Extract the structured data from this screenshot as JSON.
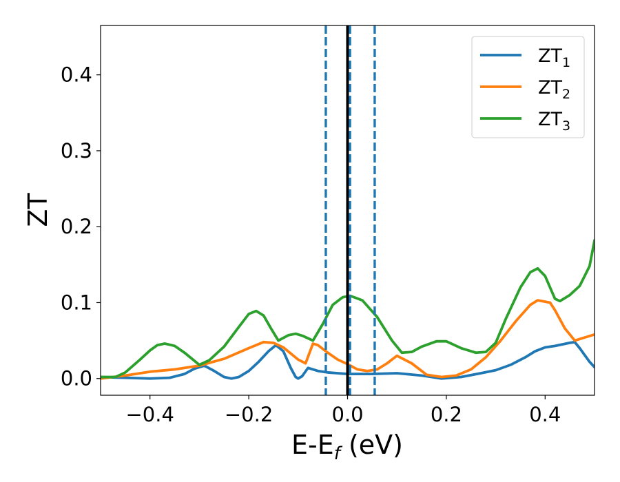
{
  "chart_data": {
    "type": "line",
    "xlabel": {
      "main": "E-E",
      "sub": "f",
      "unit": " (eV)"
    },
    "ylabel": "ZT",
    "xlim": [
      -0.5,
      0.5
    ],
    "ylim": [
      -0.022,
      0.465
    ],
    "xticks": [
      -0.4,
      -0.2,
      0.0,
      0.2,
      0.4
    ],
    "xtick_labels": [
      "−0.4",
      "−0.2",
      "0.0",
      "0.2",
      "0.4"
    ],
    "yticks": [
      0.0,
      0.1,
      0.2,
      0.3,
      0.4
    ],
    "ytick_labels": [
      "0.0",
      "0.1",
      "0.2",
      "0.3",
      "0.4"
    ],
    "grid": false,
    "legend_position": "top-right",
    "vlines": [
      {
        "x": 0.0,
        "style": "solid",
        "color": "#000000"
      },
      {
        "x": -0.044,
        "style": "dashed",
        "color": "#1f77b4"
      },
      {
        "x": 0.005,
        "style": "dashed",
        "color": "#1f77b4"
      },
      {
        "x": 0.055,
        "style": "dashed",
        "color": "#1f77b4"
      }
    ],
    "series": [
      {
        "name": "ZT",
        "name_sub": "1",
        "color": "#1f77b4",
        "points": [
          [
            -0.5,
            0.002
          ],
          [
            -0.45,
            0.001
          ],
          [
            -0.4,
            0.0
          ],
          [
            -0.36,
            0.001
          ],
          [
            -0.33,
            0.006
          ],
          [
            -0.31,
            0.013
          ],
          [
            -0.29,
            0.017
          ],
          [
            -0.27,
            0.01
          ],
          [
            -0.25,
            0.002
          ],
          [
            -0.235,
            0.0
          ],
          [
            -0.22,
            0.002
          ],
          [
            -0.2,
            0.01
          ],
          [
            -0.18,
            0.022
          ],
          [
            -0.16,
            0.036
          ],
          [
            -0.145,
            0.044
          ],
          [
            -0.13,
            0.036
          ],
          [
            -0.115,
            0.014
          ],
          [
            -0.105,
            0.002
          ],
          [
            -0.1,
            0.0
          ],
          [
            -0.092,
            0.003
          ],
          [
            -0.08,
            0.014
          ],
          [
            -0.06,
            0.01
          ],
          [
            -0.04,
            0.008
          ],
          [
            -0.02,
            0.007
          ],
          [
            0.0,
            0.006
          ],
          [
            0.05,
            0.006
          ],
          [
            0.1,
            0.007
          ],
          [
            0.15,
            0.004
          ],
          [
            0.19,
            0.0
          ],
          [
            0.23,
            0.002
          ],
          [
            0.27,
            0.007
          ],
          [
            0.3,
            0.011
          ],
          [
            0.33,
            0.018
          ],
          [
            0.36,
            0.028
          ],
          [
            0.38,
            0.036
          ],
          [
            0.4,
            0.041
          ],
          [
            0.42,
            0.043
          ],
          [
            0.45,
            0.047
          ],
          [
            0.46,
            0.048
          ],
          [
            0.47,
            0.04
          ],
          [
            0.49,
            0.022
          ],
          [
            0.5,
            0.015
          ]
        ]
      },
      {
        "name": "ZT",
        "name_sub": "2",
        "color": "#ff7f0e",
        "points": [
          [
            -0.5,
            0.0
          ],
          [
            -0.45,
            0.004
          ],
          [
            -0.4,
            0.009
          ],
          [
            -0.35,
            0.012
          ],
          [
            -0.3,
            0.017
          ],
          [
            -0.25,
            0.026
          ],
          [
            -0.2,
            0.04
          ],
          [
            -0.17,
            0.048
          ],
          [
            -0.15,
            0.047
          ],
          [
            -0.13,
            0.041
          ],
          [
            -0.1,
            0.025
          ],
          [
            -0.085,
            0.02
          ],
          [
            -0.07,
            0.046
          ],
          [
            -0.06,
            0.044
          ],
          [
            -0.04,
            0.034
          ],
          [
            -0.02,
            0.025
          ],
          [
            0.0,
            0.019
          ],
          [
            0.02,
            0.012
          ],
          [
            0.04,
            0.01
          ],
          [
            0.06,
            0.012
          ],
          [
            0.08,
            0.02
          ],
          [
            0.1,
            0.03
          ],
          [
            0.13,
            0.02
          ],
          [
            0.16,
            0.005
          ],
          [
            0.19,
            0.002
          ],
          [
            0.22,
            0.004
          ],
          [
            0.25,
            0.012
          ],
          [
            0.28,
            0.028
          ],
          [
            0.31,
            0.05
          ],
          [
            0.34,
            0.075
          ],
          [
            0.37,
            0.097
          ],
          [
            0.385,
            0.103
          ],
          [
            0.41,
            0.1
          ],
          [
            0.42,
            0.09
          ],
          [
            0.44,
            0.066
          ],
          [
            0.46,
            0.05
          ],
          [
            0.5,
            0.058
          ]
        ]
      },
      {
        "name": "ZT",
        "name_sub": "3",
        "color": "#2ca02c",
        "points": [
          [
            -0.5,
            0.002
          ],
          [
            -0.47,
            0.002
          ],
          [
            -0.45,
            0.008
          ],
          [
            -0.42,
            0.025
          ],
          [
            -0.4,
            0.037
          ],
          [
            -0.385,
            0.044
          ],
          [
            -0.37,
            0.046
          ],
          [
            -0.35,
            0.043
          ],
          [
            -0.33,
            0.034
          ],
          [
            -0.3,
            0.018
          ],
          [
            -0.28,
            0.024
          ],
          [
            -0.25,
            0.042
          ],
          [
            -0.22,
            0.068
          ],
          [
            -0.2,
            0.085
          ],
          [
            -0.185,
            0.089
          ],
          [
            -0.17,
            0.083
          ],
          [
            -0.155,
            0.066
          ],
          [
            -0.14,
            0.05
          ],
          [
            -0.12,
            0.057
          ],
          [
            -0.105,
            0.059
          ],
          [
            -0.09,
            0.056
          ],
          [
            -0.07,
            0.05
          ],
          [
            -0.05,
            0.072
          ],
          [
            -0.03,
            0.097
          ],
          [
            -0.01,
            0.107
          ],
          [
            0.005,
            0.109
          ],
          [
            0.03,
            0.103
          ],
          [
            0.06,
            0.081
          ],
          [
            0.09,
            0.05
          ],
          [
            0.11,
            0.034
          ],
          [
            0.13,
            0.035
          ],
          [
            0.15,
            0.042
          ],
          [
            0.18,
            0.049
          ],
          [
            0.2,
            0.049
          ],
          [
            0.23,
            0.04
          ],
          [
            0.26,
            0.034
          ],
          [
            0.28,
            0.035
          ],
          [
            0.3,
            0.047
          ],
          [
            0.32,
            0.078
          ],
          [
            0.35,
            0.12
          ],
          [
            0.37,
            0.14
          ],
          [
            0.385,
            0.145
          ],
          [
            0.4,
            0.135
          ],
          [
            0.42,
            0.105
          ],
          [
            0.43,
            0.102
          ],
          [
            0.45,
            0.11
          ],
          [
            0.47,
            0.122
          ],
          [
            0.49,
            0.148
          ],
          [
            0.5,
            0.182
          ]
        ]
      }
    ]
  }
}
